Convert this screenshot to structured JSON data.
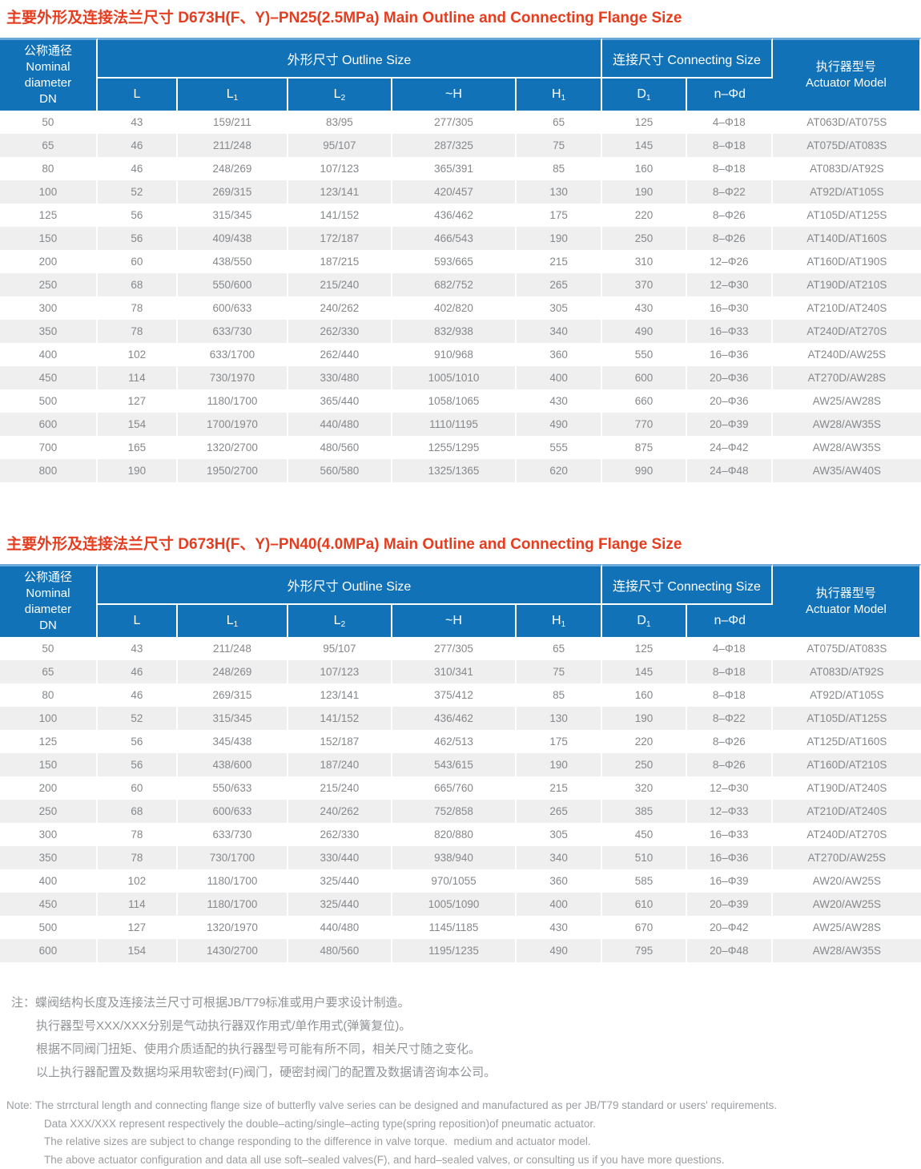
{
  "colors": {
    "header_blue": "#1172b8",
    "header_top_edge": "#69a8d8",
    "title_red": "#e53d1f",
    "alt_row_bg": "#efeff0",
    "body_text": "#85888b",
    "note_text": "#909497"
  },
  "table_header": {
    "nominal_diameter": "公称通径\nNominal\ndiameter\nDN",
    "outline_group": "外形尺寸 Outline Size",
    "connecting_group": "连接尺寸 Connecting Size",
    "actuator": "执行器型号\nActuator Model",
    "sub_columns": [
      {
        "main": "L",
        "sub": ""
      },
      {
        "main": "L",
        "sub": "1"
      },
      {
        "main": "L",
        "sub": "2"
      },
      {
        "main": "~H",
        "sub": ""
      },
      {
        "main": "H",
        "sub": "1"
      },
      {
        "main": "D",
        "sub": "1"
      },
      {
        "main": "n–Φd",
        "sub": ""
      }
    ]
  },
  "sections": [
    {
      "title": "主要外形及连接法兰尺寸 D673H(F、Y)–PN25(2.5MPa) Main Outline and Connecting Flange Size",
      "rows": [
        [
          "50",
          "43",
          "159/211",
          "83/95",
          "277/305",
          "65",
          "125",
          "4–Φ18",
          "AT063D/AT075S"
        ],
        [
          "65",
          "46",
          "211/248",
          "95/107",
          "287/325",
          "75",
          "145",
          "8–Φ18",
          "AT075D/AT083S"
        ],
        [
          "80",
          "46",
          "248/269",
          "107/123",
          "365/391",
          "85",
          "160",
          "8–Φ18",
          "AT083D/AT92S"
        ],
        [
          "100",
          "52",
          "269/315",
          "123/141",
          "420/457",
          "130",
          "190",
          "8–Φ22",
          "AT92D/AT105S"
        ],
        [
          "125",
          "56",
          "315/345",
          "141/152",
          "436/462",
          "175",
          "220",
          "8–Φ26",
          "AT105D/AT125S"
        ],
        [
          "150",
          "56",
          "409/438",
          "172/187",
          "466/543",
          "190",
          "250",
          "8–Φ26",
          "AT140D/AT160S"
        ],
        [
          "200",
          "60",
          "438/550",
          "187/215",
          "593/665",
          "215",
          "310",
          "12–Φ26",
          "AT160D/AT190S"
        ],
        [
          "250",
          "68",
          "550/600",
          "215/240",
          "682/752",
          "265",
          "370",
          "12–Φ30",
          "AT190D/AT210S"
        ],
        [
          "300",
          "78",
          "600/633",
          "240/262",
          "402/820",
          "305",
          "430",
          "16–Φ30",
          "AT210D/AT240S"
        ],
        [
          "350",
          "78",
          "633/730",
          "262/330",
          "832/938",
          "340",
          "490",
          "16–Φ33",
          "AT240D/AT270S"
        ],
        [
          "400",
          "102",
          "633/1700",
          "262/440",
          "910/968",
          "360",
          "550",
          "16–Φ36",
          "AT240D/AW25S"
        ],
        [
          "450",
          "114",
          "730/1970",
          "330/480",
          "1005/1010",
          "400",
          "600",
          "20–Φ36",
          "AT270D/AW28S"
        ],
        [
          "500",
          "127",
          "1180/1700",
          "365/440",
          "1058/1065",
          "430",
          "660",
          "20–Φ36",
          "AW25/AW28S"
        ],
        [
          "600",
          "154",
          "1700/1970",
          "440/480",
          "1110/1195",
          "490",
          "770",
          "20–Φ39",
          "AW28/AW35S"
        ],
        [
          "700",
          "165",
          "1320/2700",
          "480/560",
          "1255/1295",
          "555",
          "875",
          "24–Φ42",
          "AW28/AW35S"
        ],
        [
          "800",
          "190",
          "1950/2700",
          "560/580",
          "1325/1365",
          "620",
          "990",
          "24–Φ48",
          "AW35/AW40S"
        ]
      ]
    },
    {
      "title": "主要外形及连接法兰尺寸 D673H(F、Y)–PN40(4.0MPa) Main Outline and Connecting Flange Size",
      "rows": [
        [
          "50",
          "43",
          "211/248",
          "95/107",
          "277/305",
          "65",
          "125",
          "4–Φ18",
          "AT075D/AT083S"
        ],
        [
          "65",
          "46",
          "248/269",
          "107/123",
          "310/341",
          "75",
          "145",
          "8–Φ18",
          "AT083D/AT92S"
        ],
        [
          "80",
          "46",
          "269/315",
          "123/141",
          "375/412",
          "85",
          "160",
          "8–Φ18",
          "AT92D/AT105S"
        ],
        [
          "100",
          "52",
          "315/345",
          "141/152",
          "436/462",
          "130",
          "190",
          "8–Φ22",
          "AT105D/AT125S"
        ],
        [
          "125",
          "56",
          "345/438",
          "152/187",
          "462/513",
          "175",
          "220",
          "8–Φ26",
          "AT125D/AT160S"
        ],
        [
          "150",
          "56",
          "438/600",
          "187/240",
          "543/615",
          "190",
          "250",
          "8–Φ26",
          "AT160D/AT210S"
        ],
        [
          "200",
          "60",
          "550/633",
          "215/240",
          "665/760",
          "215",
          "320",
          "12–Φ30",
          "AT190D/AT240S"
        ],
        [
          "250",
          "68",
          "600/633",
          "240/262",
          "752/858",
          "265",
          "385",
          "12–Φ33",
          "AT210D/AT240S"
        ],
        [
          "300",
          "78",
          "633/730",
          "262/330",
          "820/880",
          "305",
          "450",
          "16–Φ33",
          "AT240D/AT270S"
        ],
        [
          "350",
          "78",
          "730/1700",
          "330/440",
          "938/940",
          "340",
          "510",
          "16–Φ36",
          "AT270D/AW25S"
        ],
        [
          "400",
          "102",
          "1180/1700",
          "325/440",
          "970/1055",
          "360",
          "585",
          "16–Φ39",
          "AW20/AW25S"
        ],
        [
          "450",
          "114",
          "1180/1700",
          "325/440",
          "1005/1090",
          "400",
          "610",
          "20–Φ39",
          "AW20/AW25S"
        ],
        [
          "500",
          "127",
          "1320/1970",
          "440/480",
          "1145/1185",
          "430",
          "670",
          "20–Φ42",
          "AW25/AW28S"
        ],
        [
          "600",
          "154",
          "1430/2700",
          "480/560",
          "1195/1235",
          "490",
          "795",
          "20–Φ48",
          "AW28/AW35S"
        ]
      ]
    }
  ],
  "notes_zh": {
    "prefix": "注：",
    "lines": [
      "蝶阀结构长度及连接法兰尺寸可根据JB/T79标准或用户要求设计制造。",
      "执行器型号XXX/XXX分别是气动执行器双作用式/单作用式(弹簧复位)。",
      "根据不同阀门扭矩、使用介质适配的执行器型号可能有所不同，相关尺寸随之变化。",
      "以上执行器配置及数据均采用软密封(F)阀门，硬密封阀门的配置及数据请咨询本公司。"
    ]
  },
  "notes_en": {
    "prefix": "Note: ",
    "lines": [
      "The strrctural length and connecting flange size of butterfly valve series can be designed and manufactured as per JB/T79 standard or users' requirements.",
      "Data XXX/XXX represent respectively the double–acting/single–acting type(spring reposition)of pneumatic actuator.",
      "The relative sizes are subject to change responding to the difference in valve torque.  medium and actuator model.",
      "The above actuator configuration and data all use soft–sealed valves(F), and hard–sealed valves, or consulting us if you have more questions."
    ]
  }
}
